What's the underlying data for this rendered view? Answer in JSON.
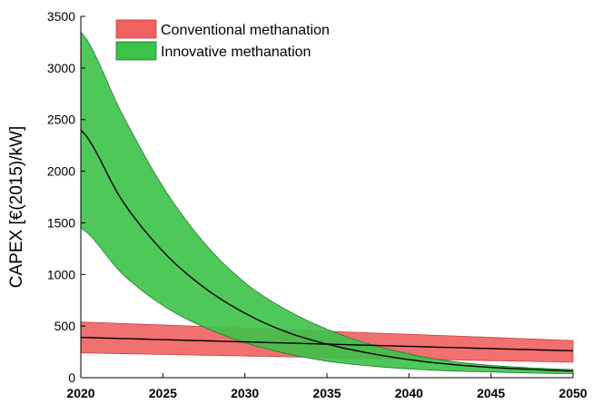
{
  "chart_data": {
    "type": "area",
    "title": "",
    "xlabel": "",
    "ylabel": "CAPEX [€(2015)/kW]",
    "xlim": [
      2020,
      2050
    ],
    "ylim": [
      0,
      3500
    ],
    "xticks": [
      2020,
      2025,
      2030,
      2035,
      2040,
      2045,
      2050
    ],
    "yticks": [
      0,
      500,
      1000,
      1500,
      2000,
      2500,
      3000,
      3500
    ],
    "grid": false,
    "legend_position": "top-left",
    "series": [
      {
        "name": "Conventional methanation",
        "color": "#f06060",
        "x": [
          2020,
          2050
        ],
        "central": [
          390,
          260
        ],
        "lower": [
          240,
          150
        ],
        "upper": [
          540,
          360
        ]
      },
      {
        "name": "Innovative methanation",
        "color": "#3cc248",
        "x": [
          2020,
          2022.5,
          2025,
          2027.5,
          2030,
          2032.5,
          2035,
          2037.5,
          2040,
          2042.5,
          2045,
          2047.5,
          2050
        ],
        "central": [
          2400,
          1720,
          1225,
          875,
          625,
          445,
          325,
          240,
          175,
          130,
          100,
          80,
          65
        ],
        "lower": [
          1450,
          1010,
          700,
          490,
          340,
          235,
          160,
          115,
          85,
          65,
          55,
          45,
          40
        ],
        "upper": [
          3350,
          2560,
          1850,
          1310,
          920,
          660,
          470,
          330,
          230,
          160,
          120,
          95,
          80
        ]
      }
    ]
  }
}
